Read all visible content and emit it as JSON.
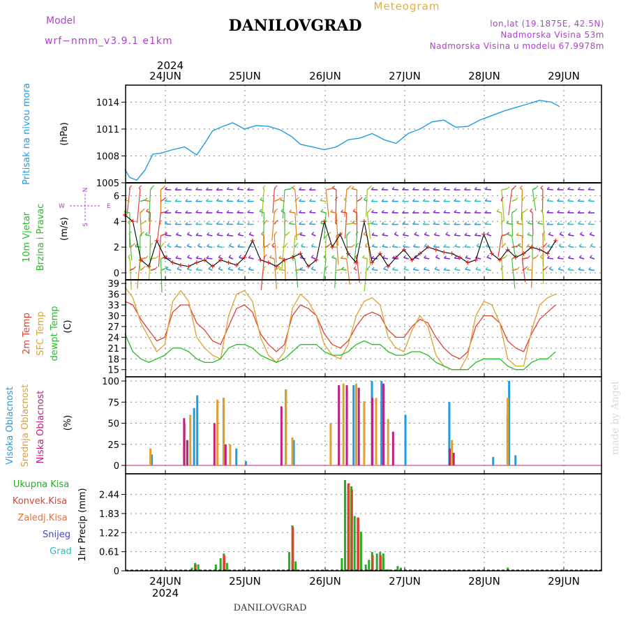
{
  "header": {
    "model_label": "Model",
    "model_value": "wrf−nmm_v3.9.1  e1km",
    "title": "DANILOVGRAD",
    "meteogram_label": "Meteogram",
    "location_line1": "lon,lat (19.1875E, 42.5N)",
    "location_line2": "Nadmorska Visina 53m",
    "location_line3": "Nadmorska Visina u modelu 67.9978m"
  },
  "time_axis": {
    "year_label": "2024",
    "day_labels": [
      "24JUN",
      "25JUN",
      "26JUN",
      "27JUN",
      "28JUN",
      "29JUN"
    ]
  },
  "footer": {
    "station": "DANILOVGRAD",
    "credit": "made by Angel"
  },
  "colors": {
    "pressure": "#1e9be6",
    "temp2m": "#e04030",
    "sfc_temp": "#e0a030",
    "dewpoint": "#20c020",
    "high_cloud": "#1e9be6",
    "mid_cloud": "#e0a030",
    "low_cloud": "#c02080",
    "total_precip": "#20b020",
    "conv_precip": "#e04030",
    "frozen_rain": "#f07030",
    "snow": "#4040e0",
    "hail": "#20c0c0",
    "magenta_text": "#b040d0",
    "wind_speed_line": "#000000",
    "wind_red_mark": "#e02020"
  },
  "chart_data": [
    {
      "type": "line",
      "panel": "pressure",
      "ylabel_main": "Pritisak na nivou mora",
      "ylabel_unit": "(hPa)",
      "ylim": [
        1005,
        1015.9
      ],
      "yticks": [
        1005,
        1008,
        1011,
        1014
      ],
      "grid": true,
      "x_days_from_start": [
        0,
        0.06,
        0.15,
        0.25,
        0.35,
        0.45,
        0.6,
        0.75,
        0.9,
        1.0,
        1.1,
        1.2,
        1.35,
        1.5,
        1.65,
        1.8,
        1.95,
        2.1,
        2.2,
        2.35,
        2.5,
        2.65,
        2.8,
        2.95,
        3.1,
        3.25,
        3.4,
        3.55,
        3.7,
        3.85,
        4.0,
        4.15,
        4.3,
        4.45,
        4.6,
        4.75,
        4.9,
        5.05,
        5.2,
        5.35,
        5.45
      ],
      "series": [
        {
          "values": [
            1006.5,
            1005.6,
            1005.3,
            1006.4,
            1008.2,
            1008.3,
            1008.7,
            1009.0,
            1008.1,
            1009.4,
            1010.8,
            1011.2,
            1011.7,
            1011.0,
            1011.4,
            1011.3,
            1010.9,
            1010.1,
            1009.3,
            1009.0,
            1008.7,
            1009.0,
            1009.8,
            1010.0,
            1010.5,
            1009.8,
            1009.4,
            1010.5,
            1011.0,
            1011.8,
            1012.0,
            1011.2,
            1011.3,
            1012.0,
            1012.5,
            1013.0,
            1013.4,
            1013.8,
            1014.2,
            1014.0,
            1013.5
          ]
        }
      ]
    },
    {
      "type": "line",
      "panel": "wind",
      "ylabel_main": "10m Vjetar",
      "ylabel_sub": "Brzina i Pravac",
      "ylabel_unit": "(m/s)",
      "compass_labels": [
        "N",
        "E",
        "S",
        "W"
      ],
      "ylim": [
        0,
        7
      ],
      "yticks": [
        0,
        2,
        4,
        6
      ],
      "grid": true,
      "x_days_from_start": [
        0,
        0.1,
        0.2,
        0.3,
        0.4,
        0.5,
        0.6,
        0.7,
        0.8,
        0.9,
        1.0,
        1.1,
        1.2,
        1.3,
        1.4,
        1.5,
        1.6,
        1.7,
        1.8,
        1.9,
        2.0,
        2.1,
        2.2,
        2.3,
        2.4,
        2.5,
        2.6,
        2.7,
        2.8,
        2.9,
        3.0,
        3.1,
        3.2,
        3.3,
        3.4,
        3.5,
        3.6,
        3.7,
        3.8,
        3.9,
        4.0,
        4.1,
        4.2,
        4.3,
        4.4,
        4.5,
        4.6,
        4.7,
        4.8,
        4.9,
        5.0,
        5.1,
        5.2,
        5.3,
        5.4
      ],
      "series": [
        {
          "values": [
            4.5,
            4.0,
            1.0,
            0.5,
            2.5,
            1.2,
            0.8,
            0.6,
            0.5,
            0.8,
            1.0,
            0.5,
            1.0,
            0.8,
            0.6,
            1.2,
            2.5,
            1.0,
            0.8,
            0.5,
            1.0,
            1.2,
            1.5,
            0.5,
            1.0,
            4.0,
            2.0,
            3.0,
            1.5,
            0.8,
            4.0,
            0.8,
            1.5,
            0.5,
            1.2,
            1.8,
            1.0,
            1.5,
            2.0,
            1.8,
            1.6,
            1.5,
            1.2,
            0.8,
            1.0,
            3.0,
            1.5,
            1.0,
            1.8,
            1.2,
            1.5,
            2.0,
            1.8,
            1.5,
            2.5
          ]
        }
      ]
    },
    {
      "type": "line",
      "panel": "temperature",
      "ylabel_lines": [
        "2m Temp",
        "SFC Temp",
        "dewpt Temp"
      ],
      "ylabel_unit": "(C)",
      "ylim": [
        13,
        40
      ],
      "yticks": [
        15,
        18,
        21,
        24,
        27,
        30,
        33,
        36,
        39
      ],
      "grid": true,
      "x_days_from_start": [
        0,
        0.1,
        0.2,
        0.3,
        0.4,
        0.5,
        0.6,
        0.7,
        0.8,
        0.9,
        1.0,
        1.1,
        1.2,
        1.3,
        1.4,
        1.5,
        1.6,
        1.7,
        1.8,
        1.9,
        2.0,
        2.1,
        2.2,
        2.3,
        2.4,
        2.5,
        2.6,
        2.7,
        2.8,
        2.9,
        3.0,
        3.1,
        3.2,
        3.3,
        3.4,
        3.5,
        3.6,
        3.7,
        3.8,
        3.9,
        4.0,
        4.1,
        4.2,
        4.3,
        4.4,
        4.5,
        4.6,
        4.7,
        4.8,
        4.9,
        5.0,
        5.1,
        5.2,
        5.3,
        5.4
      ],
      "series": [
        {
          "name": "2m Temp",
          "values": [
            34,
            33,
            29,
            26,
            23,
            24,
            31,
            33,
            33,
            28,
            26,
            23,
            22,
            27,
            32,
            33,
            31,
            25,
            22,
            20,
            22,
            30,
            33,
            32,
            30,
            25,
            22,
            21,
            23,
            27,
            30,
            31,
            30,
            26,
            24,
            24,
            27,
            29,
            28,
            24,
            21,
            19,
            18,
            20,
            27,
            30,
            30,
            28,
            23,
            21,
            20,
            25,
            29,
            31,
            33
          ]
        },
        {
          "name": "SFC Temp",
          "values": [
            38,
            35,
            28,
            24,
            20,
            22,
            34,
            37,
            34,
            24,
            21,
            19,
            18,
            30,
            36,
            37,
            34,
            24,
            19,
            17,
            20,
            32,
            36,
            34,
            30,
            22,
            19,
            18,
            22,
            30,
            34,
            35,
            33,
            24,
            21,
            20,
            26,
            30,
            27,
            19,
            16,
            15,
            15,
            19,
            30,
            34,
            33,
            28,
            18,
            16,
            16,
            26,
            33,
            35,
            36
          ]
        },
        {
          "name": "dewpt Temp",
          "values": [
            25,
            20,
            18,
            17,
            18,
            19,
            21,
            21,
            20,
            18,
            17,
            17,
            18,
            21,
            22,
            22,
            21,
            19,
            18,
            17,
            18,
            20,
            22,
            22,
            22,
            20,
            19,
            19,
            20,
            22,
            23,
            22,
            22,
            20,
            19,
            19,
            20,
            20,
            19,
            17,
            16,
            15,
            15,
            15,
            17,
            18,
            18,
            18,
            16,
            15,
            15,
            17,
            18,
            18,
            20
          ]
        }
      ]
    },
    {
      "type": "bar",
      "panel": "cloudiness",
      "ylabel_lines": [
        "Visoka Oblacnost",
        "Srednja Oblacnost",
        "Niska Oblacnost"
      ],
      "ylabel_unit": "(%)",
      "ylim": [
        0,
        105
      ],
      "yticks": [
        0,
        25,
        50,
        75,
        100
      ],
      "grid": true,
      "series": [
        {
          "name": "Visoka Oblacnost",
          "points": [
            [
              0.32,
              13
            ],
            [
              0.89,
              83
            ],
            [
              0.85,
              68
            ],
            [
              1.22,
              80
            ],
            [
              1.38,
              20
            ],
            [
              1.5,
              5
            ],
            [
              2.0,
              90
            ],
            [
              2.1,
              30
            ],
            [
              2.85,
              95
            ],
            [
              3.08,
              100
            ],
            [
              3.2,
              100
            ],
            [
              3.2,
              75
            ],
            [
              3.5,
              60
            ],
            [
              4.05,
              75
            ],
            [
              4.6,
              10
            ],
            [
              4.78,
              60
            ],
            [
              4.8,
              100
            ],
            [
              4.88,
              12
            ]
          ]
        },
        {
          "name": "Srednja Oblacnost",
          "points": [
            [
              0.32,
              20
            ],
            [
              0.75,
              50
            ],
            [
              0.82,
              60
            ],
            [
              1.16,
              78
            ],
            [
              1.24,
              80
            ],
            [
              1.32,
              25
            ],
            [
              2.02,
              90
            ],
            [
              2.1,
              33
            ],
            [
              2.58,
              50
            ],
            [
              2.74,
              97
            ],
            [
              2.9,
              97
            ],
            [
              3.0,
              76
            ],
            [
              3.15,
              80
            ],
            [
              3.3,
              55
            ],
            [
              4.1,
              30
            ],
            [
              4.8,
              80
            ]
          ]
        },
        {
          "name": "Niska Oblacnost",
          "points": [
            [
              0.76,
              56
            ],
            [
              0.8,
              30
            ],
            [
              1.14,
              50
            ],
            [
              1.28,
              25
            ],
            [
              1.98,
              70
            ],
            [
              2.7,
              95
            ],
            [
              2.8,
              95
            ],
            [
              2.95,
              92
            ],
            [
              3.12,
              80
            ],
            [
              3.26,
              97
            ],
            [
              3.38,
              40
            ],
            [
              4.09,
              20
            ],
            [
              4.14,
              15
            ]
          ]
        }
      ]
    },
    {
      "type": "bar",
      "panel": "precipitation",
      "legend": [
        "Ukupna Kisa",
        "Konvek.Kisa",
        "Zaledj.Kisa",
        "Snijeg",
        "Grad"
      ],
      "ylabel_unit": "1hr Precip (mm)",
      "ylim": [
        0,
        3.1
      ],
      "yticks": [
        0,
        0.61,
        1.22,
        1.83,
        2.44
      ],
      "grid": true,
      "series": [
        {
          "name": "Ukupna Kisa",
          "points": [
            [
              0.84,
              0.1
            ],
            [
              0.88,
              0.25
            ],
            [
              0.92,
              0.2
            ],
            [
              1.14,
              0.2
            ],
            [
              1.2,
              0.4
            ],
            [
              1.24,
              0.55
            ],
            [
              1.28,
              0.25
            ],
            [
              1.48,
              0.05
            ],
            [
              2.06,
              0.6
            ],
            [
              2.1,
              1.45
            ],
            [
              2.14,
              0.3
            ],
            [
              2.72,
              0.4
            ],
            [
              2.76,
              2.9
            ],
            [
              2.8,
              2.78
            ],
            [
              2.84,
              2.7
            ],
            [
              2.88,
              1.75
            ],
            [
              2.92,
              1.7
            ],
            [
              2.96,
              1.25
            ],
            [
              3.02,
              0.2
            ],
            [
              3.06,
              0.35
            ],
            [
              3.1,
              0.6
            ],
            [
              3.16,
              0.55
            ],
            [
              3.2,
              0.6
            ],
            [
              3.24,
              0.55
            ],
            [
              3.3,
              0.05
            ],
            [
              3.42,
              0.15
            ],
            [
              3.46,
              0.1
            ],
            [
              4.8,
              0.1
            ]
          ]
        },
        {
          "name": "Konvek.Kisa",
          "points": [
            [
              0.86,
              0.2
            ],
            [
              1.22,
              0.5
            ],
            [
              2.08,
              1.4
            ],
            [
              2.78,
              2.8
            ],
            [
              2.82,
              2.6
            ],
            [
              2.9,
              1.7
            ],
            [
              3.08,
              0.5
            ],
            [
              3.18,
              0.5
            ]
          ]
        }
      ]
    }
  ]
}
